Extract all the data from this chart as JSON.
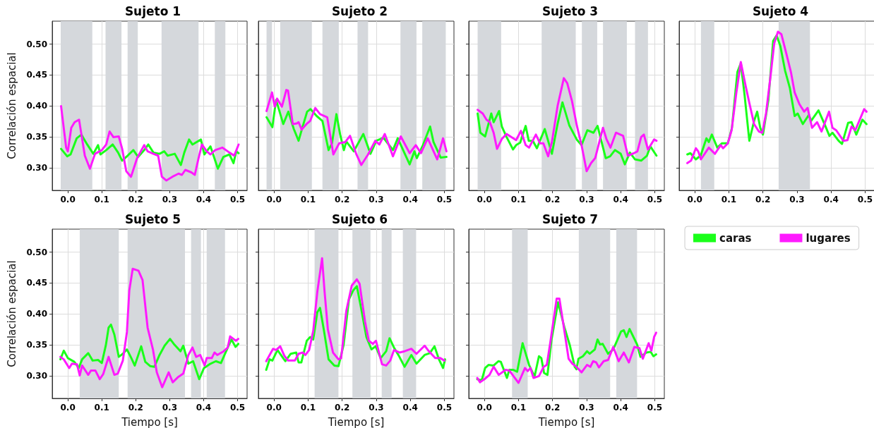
{
  "chart_data": [
    {
      "type": "line",
      "title": "Sujeto 1",
      "ylabel": "Correlación espacial",
      "xlim": [
        -0.046,
        0.528
      ],
      "ylim": [
        0.264,
        0.537
      ],
      "xticks": [
        {
          "value": 0,
          "label": "0.0"
        },
        {
          "value": 0.1,
          "label": "0.1"
        },
        {
          "value": 0.2,
          "label": "0.2"
        },
        {
          "value": 0.3,
          "label": "0.3"
        },
        {
          "value": 0.4,
          "label": "0.4"
        },
        {
          "value": 0.5,
          "label": "0.5"
        }
      ],
      "yticks": [
        {
          "value": 0.3,
          "label": "0.30"
        },
        {
          "value": 0.35,
          "label": "0.35"
        },
        {
          "value": 0.4,
          "label": "0.40"
        },
        {
          "value": 0.45,
          "label": "0.45"
        },
        {
          "value": 0.5,
          "label": "0.50"
        }
      ],
      "grid": true,
      "marker": "none",
      "tick_labels": "xy",
      "bands": [
        {
          "axis": "x",
          "from": -0.021,
          "to": 0.072,
          "color": "#d5d8dc"
        },
        {
          "axis": "x",
          "from": 0.111,
          "to": 0.158,
          "color": "#d5d8dc"
        },
        {
          "axis": "x",
          "from": 0.176,
          "to": 0.206,
          "color": "#d5d8dc"
        },
        {
          "axis": "x",
          "from": 0.276,
          "to": 0.385,
          "color": "#d5d8dc"
        },
        {
          "axis": "x",
          "from": 0.433,
          "to": 0.464,
          "color": "#d5d8dc"
        }
      ],
      "series": [
        {
          "color": "#1aff1a",
          "x": [
            -0.02,
            -0.002,
            0.008,
            0.026,
            0.04,
            0.057,
            0.075,
            0.089,
            0.096,
            0.113,
            0.132,
            0.148,
            0.16,
            0.176,
            0.193,
            0.207,
            0.225,
            0.237,
            0.252,
            0.27,
            0.284,
            0.294,
            0.315,
            0.333,
            0.343,
            0.357,
            0.367,
            0.392,
            0.402,
            0.42,
            0.442,
            0.458,
            0.476,
            0.488,
            0.496,
            0.503
          ],
          "values": [
            0.331,
            0.319,
            0.322,
            0.348,
            0.354,
            0.338,
            0.323,
            0.337,
            0.322,
            0.329,
            0.338,
            0.325,
            0.312,
            0.32,
            0.329,
            0.318,
            0.329,
            0.338,
            0.325,
            0.323,
            0.327,
            0.32,
            0.323,
            0.305,
            0.325,
            0.346,
            0.338,
            0.346,
            0.322,
            0.335,
            0.299,
            0.318,
            0.322,
            0.308,
            0.327,
            0.324
          ]
        },
        {
          "color": "#ff1aff",
          "x": [
            -0.02,
            -0.005,
            0.0,
            0.01,
            0.02,
            0.033,
            0.04,
            0.05,
            0.065,
            0.08,
            0.1,
            0.113,
            0.123,
            0.134,
            0.15,
            0.16,
            0.172,
            0.186,
            0.204,
            0.225,
            0.235,
            0.252,
            0.266,
            0.277,
            0.29,
            0.308,
            0.326,
            0.336,
            0.346,
            0.364,
            0.374,
            0.385,
            0.395,
            0.409,
            0.42,
            0.434,
            0.455,
            0.476,
            0.49,
            0.503
          ],
          "values": [
            0.4,
            0.333,
            0.327,
            0.365,
            0.374,
            0.378,
            0.354,
            0.32,
            0.299,
            0.323,
            0.329,
            0.338,
            0.359,
            0.35,
            0.351,
            0.331,
            0.295,
            0.286,
            0.316,
            0.337,
            0.327,
            0.323,
            0.32,
            0.286,
            0.28,
            0.286,
            0.291,
            0.289,
            0.297,
            0.293,
            0.289,
            0.316,
            0.338,
            0.327,
            0.322,
            0.329,
            0.333,
            0.325,
            0.32,
            0.338
          ]
        }
      ]
    },
    {
      "type": "line",
      "title": "Sujeto 2",
      "xlim": [
        -0.046,
        0.528
      ],
      "ylim": [
        0.264,
        0.537
      ],
      "xticks": [
        {
          "value": 0,
          "label": "0.0"
        },
        {
          "value": 0.1,
          "label": "0.1"
        },
        {
          "value": 0.2,
          "label": "0.2"
        },
        {
          "value": 0.3,
          "label": "0.3"
        },
        {
          "value": 0.4,
          "label": "0.4"
        },
        {
          "value": 0.5,
          "label": "0.5"
        }
      ],
      "yticks": [
        {
          "value": 0.3,
          "label": null
        },
        {
          "value": 0.35,
          "label": null
        },
        {
          "value": 0.4,
          "label": null
        },
        {
          "value": 0.45,
          "label": null
        },
        {
          "value": 0.5,
          "label": null
        }
      ],
      "grid": true,
      "marker": "none",
      "tick_labels": "x",
      "bands": [
        {
          "axis": "x",
          "from": -0.022,
          "to": -0.006,
          "color": "#d5d8dc"
        },
        {
          "axis": "x",
          "from": 0.018,
          "to": 0.111,
          "color": "#d5d8dc"
        },
        {
          "axis": "x",
          "from": 0.142,
          "to": 0.19,
          "color": "#d5d8dc"
        },
        {
          "axis": "x",
          "from": 0.245,
          "to": 0.276,
          "color": "#d5d8dc"
        },
        {
          "axis": "x",
          "from": 0.371,
          "to": 0.418,
          "color": "#d5d8dc"
        },
        {
          "axis": "x",
          "from": 0.435,
          "to": 0.504,
          "color": "#d5d8dc"
        }
      ],
      "series": [
        {
          "color": "#1aff1a",
          "x": [
            -0.022,
            -0.005,
            0.006,
            0.027,
            0.042,
            0.058,
            0.072,
            0.083,
            0.097,
            0.107,
            0.125,
            0.142,
            0.16,
            0.17,
            0.183,
            0.194,
            0.205,
            0.212,
            0.234,
            0.262,
            0.283,
            0.3,
            0.321,
            0.349,
            0.363,
            0.398,
            0.412,
            0.419,
            0.437,
            0.458,
            0.468,
            0.489,
            0.506
          ],
          "values": [
            0.382,
            0.366,
            0.41,
            0.371,
            0.391,
            0.363,
            0.344,
            0.365,
            0.391,
            0.395,
            0.384,
            0.376,
            0.329,
            0.34,
            0.387,
            0.354,
            0.329,
            0.343,
            0.327,
            0.355,
            0.323,
            0.344,
            0.349,
            0.329,
            0.348,
            0.306,
            0.327,
            0.316,
            0.337,
            0.367,
            0.342,
            0.317,
            0.318
          ]
        },
        {
          "color": "#ff1aff",
          "x": [
            -0.022,
            -0.006,
            0.002,
            0.009,
            0.023,
            0.036,
            0.041,
            0.055,
            0.067,
            0.072,
            0.081,
            0.097,
            0.106,
            0.121,
            0.135,
            0.156,
            0.174,
            0.191,
            0.209,
            0.223,
            0.241,
            0.256,
            0.276,
            0.297,
            0.309,
            0.325,
            0.349,
            0.372,
            0.398,
            0.416,
            0.431,
            0.451,
            0.479,
            0.496,
            0.506
          ],
          "values": [
            0.392,
            0.422,
            0.399,
            0.412,
            0.399,
            0.426,
            0.425,
            0.371,
            0.372,
            0.374,
            0.362,
            0.372,
            0.376,
            0.397,
            0.387,
            0.382,
            0.322,
            0.34,
            0.342,
            0.352,
            0.323,
            0.305,
            0.322,
            0.344,
            0.338,
            0.355,
            0.319,
            0.351,
            0.324,
            0.337,
            0.324,
            0.348,
            0.314,
            0.348,
            0.327
          ]
        }
      ]
    },
    {
      "type": "line",
      "title": "Sujeto 3",
      "xlim": [
        -0.046,
        0.528
      ],
      "ylim": [
        0.264,
        0.537
      ],
      "xticks": [
        {
          "value": 0,
          "label": "0.0"
        },
        {
          "value": 0.1,
          "label": "0.1"
        },
        {
          "value": 0.2,
          "label": "0.2"
        },
        {
          "value": 0.3,
          "label": "0.3"
        },
        {
          "value": 0.4,
          "label": "0.4"
        },
        {
          "value": 0.5,
          "label": "0.5"
        }
      ],
      "yticks": [
        {
          "value": 0.3,
          "label": null
        },
        {
          "value": 0.35,
          "label": null
        },
        {
          "value": 0.4,
          "label": null
        },
        {
          "value": 0.45,
          "label": null
        },
        {
          "value": 0.5,
          "label": null
        }
      ],
      "grid": true,
      "marker": "none",
      "tick_labels": "x",
      "bands": [
        {
          "axis": "x",
          "from": -0.02,
          "to": 0.049,
          "color": "#d5d8dc"
        },
        {
          "axis": "x",
          "from": 0.168,
          "to": 0.268,
          "color": "#d5d8dc"
        },
        {
          "axis": "x",
          "from": 0.286,
          "to": 0.331,
          "color": "#d5d8dc"
        },
        {
          "axis": "x",
          "from": 0.348,
          "to": 0.418,
          "color": "#d5d8dc"
        },
        {
          "axis": "x",
          "from": 0.442,
          "to": 0.48,
          "color": "#d5d8dc"
        }
      ],
      "series": [
        {
          "color": "#1aff1a",
          "x": [
            -0.02,
            -0.012,
            0.002,
            0.02,
            0.027,
            0.043,
            0.051,
            0.065,
            0.084,
            0.093,
            0.105,
            0.11,
            0.121,
            0.13,
            0.142,
            0.154,
            0.177,
            0.198,
            0.215,
            0.229,
            0.249,
            0.271,
            0.285,
            0.302,
            0.32,
            0.332,
            0.356,
            0.369,
            0.383,
            0.4,
            0.412,
            0.427,
            0.442,
            0.46,
            0.477,
            0.487,
            0.505
          ],
          "values": [
            0.388,
            0.357,
            0.351,
            0.388,
            0.374,
            0.392,
            0.367,
            0.35,
            0.33,
            0.337,
            0.341,
            0.35,
            0.368,
            0.344,
            0.344,
            0.332,
            0.363,
            0.323,
            0.372,
            0.406,
            0.369,
            0.346,
            0.337,
            0.361,
            0.357,
            0.368,
            0.316,
            0.319,
            0.329,
            0.323,
            0.306,
            0.325,
            0.314,
            0.312,
            0.32,
            0.335,
            0.32
          ]
        },
        {
          "color": "#ff1aff",
          "x": [
            -0.02,
            -0.005,
            0.006,
            0.016,
            0.027,
            0.037,
            0.051,
            0.065,
            0.093,
            0.107,
            0.121,
            0.131,
            0.151,
            0.163,
            0.173,
            0.187,
            0.198,
            0.215,
            0.233,
            0.243,
            0.257,
            0.271,
            0.285,
            0.3,
            0.313,
            0.325,
            0.348,
            0.358,
            0.37,
            0.386,
            0.407,
            0.421,
            0.439,
            0.449,
            0.46,
            0.468,
            0.48,
            0.498,
            0.505
          ],
          "values": [
            0.394,
            0.388,
            0.378,
            0.374,
            0.357,
            0.331,
            0.347,
            0.355,
            0.345,
            0.36,
            0.337,
            0.333,
            0.354,
            0.34,
            0.34,
            0.319,
            0.342,
            0.401,
            0.445,
            0.437,
            0.408,
            0.369,
            0.337,
            0.295,
            0.308,
            0.316,
            0.365,
            0.347,
            0.333,
            0.357,
            0.352,
            0.32,
            0.324,
            0.327,
            0.35,
            0.354,
            0.33,
            0.346,
            0.344
          ]
        }
      ]
    },
    {
      "type": "line",
      "title": "Sujeto 4",
      "xlim": [
        -0.046,
        0.528
      ],
      "ylim": [
        0.264,
        0.537
      ],
      "xticks": [
        {
          "value": 0,
          "label": "0.0"
        },
        {
          "value": 0.1,
          "label": "0.1"
        },
        {
          "value": 0.2,
          "label": "0.2"
        },
        {
          "value": 0.3,
          "label": "0.3"
        },
        {
          "value": 0.4,
          "label": "0.4"
        },
        {
          "value": 0.5,
          "label": "0.5"
        }
      ],
      "yticks": [
        {
          "value": 0.3,
          "label": null
        },
        {
          "value": 0.35,
          "label": null
        },
        {
          "value": 0.4,
          "label": null
        },
        {
          "value": 0.45,
          "label": null
        },
        {
          "value": 0.5,
          "label": null
        }
      ],
      "grid": true,
      "marker": "none",
      "tick_labels": "x",
      "bands": [
        {
          "axis": "x",
          "from": 0.018,
          "to": 0.057,
          "color": "#d5d8dc"
        },
        {
          "axis": "x",
          "from": 0.246,
          "to": 0.338,
          "color": "#d5d8dc"
        }
      ],
      "series": [
        {
          "color": "#1aff1a",
          "x": [
            -0.022,
            -0.013,
            0.003,
            0.017,
            0.034,
            0.041,
            0.05,
            0.066,
            0.08,
            0.097,
            0.109,
            0.125,
            0.135,
            0.146,
            0.16,
            0.174,
            0.183,
            0.192,
            0.2,
            0.216,
            0.23,
            0.24,
            0.251,
            0.265,
            0.279,
            0.293,
            0.302,
            0.317,
            0.335,
            0.341,
            0.363,
            0.38,
            0.395,
            0.404,
            0.422,
            0.432,
            0.45,
            0.46,
            0.474,
            0.492,
            0.504
          ],
          "values": [
            0.322,
            0.324,
            0.314,
            0.32,
            0.348,
            0.342,
            0.354,
            0.333,
            0.34,
            0.34,
            0.365,
            0.455,
            0.469,
            0.418,
            0.344,
            0.376,
            0.391,
            0.365,
            0.354,
            0.41,
            0.505,
            0.514,
            0.497,
            0.457,
            0.429,
            0.384,
            0.388,
            0.371,
            0.386,
            0.376,
            0.393,
            0.372,
            0.352,
            0.357,
            0.344,
            0.339,
            0.373,
            0.374,
            0.354,
            0.378,
            0.371
          ]
        },
        {
          "color": "#ff1aff",
          "x": [
            -0.022,
            -0.011,
            0.003,
            0.01,
            0.018,
            0.041,
            0.059,
            0.076,
            0.083,
            0.097,
            0.108,
            0.122,
            0.135,
            0.149,
            0.16,
            0.174,
            0.188,
            0.198,
            0.209,
            0.223,
            0.233,
            0.244,
            0.254,
            0.268,
            0.282,
            0.293,
            0.307,
            0.321,
            0.331,
            0.344,
            0.359,
            0.372,
            0.394,
            0.404,
            0.415,
            0.436,
            0.448,
            0.46,
            0.471,
            0.497,
            0.504
          ],
          "values": [
            0.308,
            0.312,
            0.332,
            0.327,
            0.314,
            0.333,
            0.323,
            0.337,
            0.332,
            0.34,
            0.361,
            0.422,
            0.471,
            0.433,
            0.405,
            0.371,
            0.359,
            0.357,
            0.388,
            0.452,
            0.501,
            0.52,
            0.516,
            0.486,
            0.455,
            0.422,
            0.403,
            0.391,
            0.397,
            0.365,
            0.374,
            0.359,
            0.391,
            0.365,
            0.361,
            0.344,
            0.345,
            0.367,
            0.361,
            0.395,
            0.391
          ]
        }
      ]
    },
    {
      "type": "line",
      "title": "Sujeto 5",
      "xlabel": "Tiempo [s]",
      "ylabel": "Correlación espacial",
      "xlim": [
        -0.046,
        0.528
      ],
      "ylim": [
        0.264,
        0.537
      ],
      "xticks": [
        {
          "value": 0,
          "label": "0.0"
        },
        {
          "value": 0.1,
          "label": "0.1"
        },
        {
          "value": 0.2,
          "label": "0.2"
        },
        {
          "value": 0.3,
          "label": "0.3"
        },
        {
          "value": 0.4,
          "label": "0.4"
        },
        {
          "value": 0.5,
          "label": "0.5"
        }
      ],
      "yticks": [
        {
          "value": 0.3,
          "label": "0.30"
        },
        {
          "value": 0.35,
          "label": "0.35"
        },
        {
          "value": 0.4,
          "label": "0.40"
        },
        {
          "value": 0.45,
          "label": "0.45"
        },
        {
          "value": 0.5,
          "label": "0.50"
        }
      ],
      "grid": true,
      "marker": "none",
      "tick_labels": "xy",
      "bands": [
        {
          "axis": "x",
          "from": 0.035,
          "to": 0.15,
          "color": "#d5d8dc"
        },
        {
          "axis": "x",
          "from": 0.176,
          "to": 0.345,
          "color": "#d5d8dc"
        },
        {
          "axis": "x",
          "from": 0.363,
          "to": 0.392,
          "color": "#d5d8dc"
        },
        {
          "axis": "x",
          "from": 0.409,
          "to": 0.463,
          "color": "#d5d8dc"
        }
      ],
      "series": [
        {
          "color": "#1aff1a",
          "x": [
            -0.022,
            -0.012,
            0.0,
            0.019,
            0.032,
            0.042,
            0.06,
            0.073,
            0.089,
            0.1,
            0.112,
            0.12,
            0.127,
            0.137,
            0.15,
            0.162,
            0.174,
            0.187,
            0.197,
            0.216,
            0.228,
            0.243,
            0.255,
            0.27,
            0.285,
            0.301,
            0.312,
            0.332,
            0.34,
            0.355,
            0.369,
            0.387,
            0.401,
            0.417,
            0.436,
            0.451,
            0.471,
            0.482,
            0.494,
            0.502
          ],
          "values": [
            0.327,
            0.341,
            0.329,
            0.323,
            0.313,
            0.327,
            0.337,
            0.325,
            0.326,
            0.321,
            0.35,
            0.378,
            0.383,
            0.367,
            0.331,
            0.336,
            0.343,
            0.329,
            0.317,
            0.348,
            0.323,
            0.316,
            0.315,
            0.334,
            0.349,
            0.36,
            0.352,
            0.34,
            0.349,
            0.32,
            0.324,
            0.295,
            0.313,
            0.319,
            0.324,
            0.321,
            0.346,
            0.359,
            0.347,
            0.352
          ]
        },
        {
          "color": "#ff1aff",
          "x": [
            -0.022,
            -0.012,
            0.004,
            0.012,
            0.027,
            0.035,
            0.042,
            0.06,
            0.068,
            0.081,
            0.094,
            0.104,
            0.12,
            0.137,
            0.147,
            0.162,
            0.174,
            0.181,
            0.191,
            0.208,
            0.22,
            0.235,
            0.251,
            0.262,
            0.278,
            0.297,
            0.309,
            0.324,
            0.34,
            0.355,
            0.367,
            0.378,
            0.39,
            0.403,
            0.409,
            0.424,
            0.432,
            0.44,
            0.459,
            0.471,
            0.478,
            0.495,
            0.502
          ],
          "values": [
            0.331,
            0.327,
            0.313,
            0.32,
            0.319,
            0.301,
            0.317,
            0.302,
            0.309,
            0.309,
            0.295,
            0.303,
            0.331,
            0.302,
            0.304,
            0.325,
            0.371,
            0.438,
            0.473,
            0.47,
            0.455,
            0.378,
            0.342,
            0.306,
            0.282,
            0.306,
            0.29,
            0.298,
            0.304,
            0.334,
            0.346,
            0.331,
            0.334,
            0.317,
            0.329,
            0.329,
            0.338,
            0.334,
            0.34,
            0.346,
            0.364,
            0.357,
            0.36
          ]
        }
      ]
    },
    {
      "type": "line",
      "title": "Sujeto 6",
      "xlabel": "Tiempo [s]",
      "xlim": [
        -0.046,
        0.528
      ],
      "ylim": [
        0.264,
        0.537
      ],
      "xticks": [
        {
          "value": 0,
          "label": "0.0"
        },
        {
          "value": 0.1,
          "label": "0.1"
        },
        {
          "value": 0.2,
          "label": "0.2"
        },
        {
          "value": 0.3,
          "label": "0.3"
        },
        {
          "value": 0.4,
          "label": "0.4"
        },
        {
          "value": 0.5,
          "label": "0.5"
        }
      ],
      "yticks": [
        {
          "value": 0.3,
          "label": null
        },
        {
          "value": 0.35,
          "label": null
        },
        {
          "value": 0.4,
          "label": null
        },
        {
          "value": 0.45,
          "label": null
        },
        {
          "value": 0.5,
          "label": null
        }
      ],
      "grid": true,
      "marker": "none",
      "tick_labels": "x",
      "bands": [
        {
          "axis": "x",
          "from": 0.119,
          "to": 0.189,
          "color": "#d5d8dc"
        },
        {
          "axis": "x",
          "from": 0.23,
          "to": 0.283,
          "color": "#d5d8dc"
        },
        {
          "axis": "x",
          "from": 0.316,
          "to": 0.345,
          "color": "#d5d8dc"
        },
        {
          "axis": "x",
          "from": 0.378,
          "to": 0.417,
          "color": "#d5d8dc"
        }
      ],
      "series": [
        {
          "color": "#1aff1a",
          "x": [
            -0.023,
            -0.013,
            -0.005,
            0.01,
            0.033,
            0.049,
            0.065,
            0.072,
            0.08,
            0.096,
            0.106,
            0.115,
            0.127,
            0.135,
            0.146,
            0.16,
            0.177,
            0.189,
            0.204,
            0.22,
            0.232,
            0.243,
            0.255,
            0.271,
            0.286,
            0.298,
            0.313,
            0.329,
            0.339,
            0.352,
            0.368,
            0.383,
            0.403,
            0.418,
            0.442,
            0.457,
            0.471,
            0.484,
            0.496,
            0.502
          ],
          "values": [
            0.31,
            0.327,
            0.325,
            0.342,
            0.324,
            0.336,
            0.338,
            0.322,
            0.322,
            0.357,
            0.363,
            0.359,
            0.403,
            0.41,
            0.375,
            0.327,
            0.317,
            0.316,
            0.35,
            0.424,
            0.438,
            0.445,
            0.411,
            0.363,
            0.343,
            0.348,
            0.329,
            0.34,
            0.361,
            0.346,
            0.331,
            0.315,
            0.334,
            0.32,
            0.334,
            0.337,
            0.348,
            0.327,
            0.313,
            0.327
          ]
        },
        {
          "color": "#ff1aff",
          "x": [
            -0.023,
            -0.003,
            0.006,
            0.018,
            0.03,
            0.041,
            0.061,
            0.072,
            0.084,
            0.092,
            0.103,
            0.115,
            0.127,
            0.141,
            0.148,
            0.158,
            0.173,
            0.189,
            0.197,
            0.212,
            0.228,
            0.243,
            0.251,
            0.267,
            0.278,
            0.29,
            0.299,
            0.308,
            0.317,
            0.329,
            0.341,
            0.352,
            0.368,
            0.383,
            0.403,
            0.418,
            0.442,
            0.453,
            0.473,
            0.488,
            0.5
          ],
          "values": [
            0.324,
            0.344,
            0.342,
            0.348,
            0.333,
            0.325,
            0.325,
            0.336,
            0.338,
            0.334,
            0.342,
            0.373,
            0.436,
            0.49,
            0.438,
            0.375,
            0.338,
            0.327,
            0.329,
            0.405,
            0.446,
            0.456,
            0.449,
            0.388,
            0.357,
            0.352,
            0.357,
            0.338,
            0.319,
            0.317,
            0.325,
            0.342,
            0.338,
            0.34,
            0.344,
            0.336,
            0.349,
            0.341,
            0.329,
            0.329,
            0.325
          ]
        }
      ]
    },
    {
      "type": "line",
      "title": "Sujeto 7",
      "xlabel": "Tiempo [s]",
      "xlim": [
        -0.046,
        0.528
      ],
      "ylim": [
        0.264,
        0.537
      ],
      "xticks": [
        {
          "value": 0,
          "label": "0.0"
        },
        {
          "value": 0.1,
          "label": "0.1"
        },
        {
          "value": 0.2,
          "label": "0.2"
        },
        {
          "value": 0.3,
          "label": "0.3"
        },
        {
          "value": 0.4,
          "label": "0.4"
        },
        {
          "value": 0.5,
          "label": "0.5"
        }
      ],
      "yticks": [
        {
          "value": 0.3,
          "label": null
        },
        {
          "value": 0.35,
          "label": null
        },
        {
          "value": 0.4,
          "label": null
        },
        {
          "value": 0.45,
          "label": null
        },
        {
          "value": 0.5,
          "label": null
        }
      ],
      "grid": true,
      "marker": "none",
      "tick_labels": "x",
      "legend": "right",
      "bands": [
        {
          "axis": "x",
          "from": 0.081,
          "to": 0.127,
          "color": "#d5d8dc"
        },
        {
          "axis": "x",
          "from": 0.277,
          "to": 0.369,
          "color": "#d5d8dc"
        },
        {
          "axis": "x",
          "from": 0.387,
          "to": 0.448,
          "color": "#d5d8dc"
        }
      ],
      "series": [
        {
          "name": "caras",
          "color": "#1aff1a",
          "x": [
            -0.021,
            -0.008,
            0.002,
            0.012,
            0.027,
            0.041,
            0.048,
            0.066,
            0.073,
            0.085,
            0.096,
            0.112,
            0.131,
            0.147,
            0.16,
            0.167,
            0.175,
            0.185,
            0.197,
            0.216,
            0.235,
            0.251,
            0.265,
            0.27,
            0.276,
            0.289,
            0.301,
            0.309,
            0.324,
            0.332,
            0.339,
            0.347,
            0.363,
            0.378,
            0.401,
            0.409,
            0.417,
            0.426,
            0.448,
            0.458,
            0.475,
            0.488,
            0.496,
            0.504
          ],
          "values": [
            0.295,
            0.293,
            0.313,
            0.318,
            0.317,
            0.324,
            0.323,
            0.297,
            0.31,
            0.31,
            0.307,
            0.353,
            0.318,
            0.299,
            0.332,
            0.329,
            0.305,
            0.302,
            0.359,
            0.419,
            0.378,
            0.349,
            0.315,
            0.311,
            0.328,
            0.332,
            0.34,
            0.336,
            0.343,
            0.359,
            0.351,
            0.352,
            0.336,
            0.343,
            0.372,
            0.374,
            0.363,
            0.376,
            0.351,
            0.331,
            0.338,
            0.339,
            0.332,
            0.335
          ]
        },
        {
          "name": "lugares",
          "color": "#ff1aff",
          "x": [
            -0.021,
            -0.013,
            0.0,
            0.015,
            0.027,
            0.042,
            0.062,
            0.073,
            0.089,
            0.1,
            0.119,
            0.127,
            0.135,
            0.144,
            0.16,
            0.174,
            0.183,
            0.193,
            0.212,
            0.22,
            0.231,
            0.247,
            0.258,
            0.27,
            0.285,
            0.301,
            0.311,
            0.319,
            0.328,
            0.336,
            0.35,
            0.363,
            0.378,
            0.394,
            0.409,
            0.424,
            0.44,
            0.455,
            0.465,
            0.482,
            0.49,
            0.498,
            0.504
          ],
          "values": [
            0.297,
            0.29,
            0.295,
            0.302,
            0.315,
            0.302,
            0.31,
            0.309,
            0.297,
            0.289,
            0.313,
            0.308,
            0.313,
            0.297,
            0.3,
            0.315,
            0.318,
            0.353,
            0.425,
            0.425,
            0.386,
            0.328,
            0.32,
            0.315,
            0.306,
            0.318,
            0.315,
            0.324,
            0.322,
            0.314,
            0.324,
            0.326,
            0.347,
            0.324,
            0.338,
            0.322,
            0.347,
            0.345,
            0.328,
            0.353,
            0.341,
            0.363,
            0.37
          ]
        }
      ]
    }
  ]
}
